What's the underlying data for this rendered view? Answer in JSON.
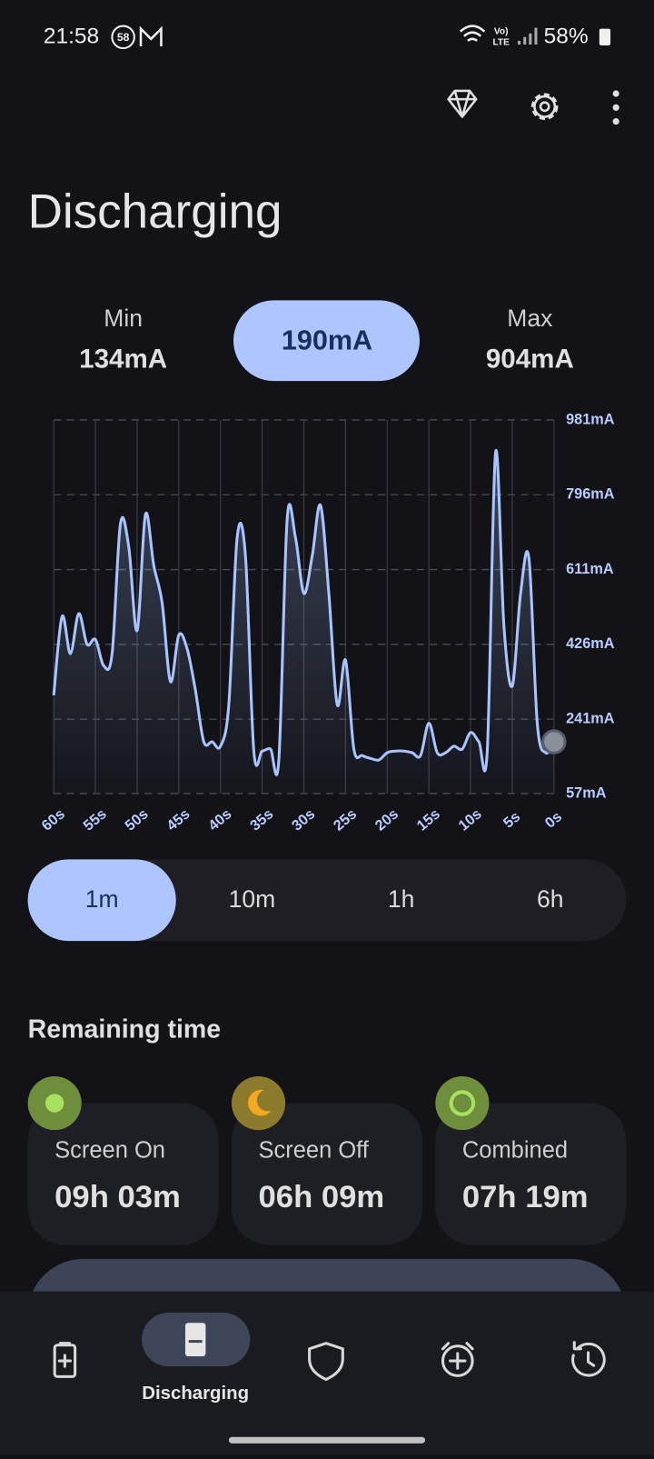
{
  "status_bar": {
    "time": "21:58",
    "notification_badge": "58",
    "volte": "Vo)",
    "lte": "LTE",
    "battery": "58%"
  },
  "header": {
    "title": "Discharging"
  },
  "stats": {
    "min_label": "Min",
    "min_value": "134mA",
    "current": "190mA",
    "max_label": "Max",
    "max_value": "904mA"
  },
  "chart_data": {
    "type": "line",
    "x": [
      60,
      59,
      58,
      57,
      56,
      55,
      54,
      53,
      52,
      51,
      50,
      49,
      48,
      47,
      46,
      45,
      44,
      43,
      42,
      41,
      40,
      39,
      38,
      37,
      36,
      35,
      34,
      33,
      32,
      31,
      30,
      29,
      28,
      27,
      26,
      25,
      24,
      23,
      22,
      21,
      20,
      19,
      18,
      17,
      16,
      15,
      14,
      13,
      12,
      11,
      10,
      9,
      8,
      7,
      6,
      5,
      4,
      3,
      2,
      1,
      0
    ],
    "values": [
      300,
      495,
      403,
      502,
      426,
      438,
      373,
      403,
      724,
      667,
      460,
      747,
      621,
      529,
      334,
      449,
      415,
      312,
      185,
      185,
      174,
      277,
      690,
      644,
      162,
      162,
      167,
      140,
      736,
      690,
      552,
      644,
      770,
      552,
      277,
      387,
      167,
      151,
      144,
      140,
      158,
      162,
      162,
      158,
      151,
      231,
      158,
      158,
      174,
      167,
      208,
      185,
      162,
      901,
      472,
      323,
      552,
      639,
      231,
      158,
      185
    ],
    "color": "#a8c4ff",
    "xlim": [
      60,
      0
    ],
    "xticks": [
      {
        "value": 60,
        "label": "60s"
      },
      {
        "value": 55,
        "label": "55s"
      },
      {
        "value": 50,
        "label": "50s"
      },
      {
        "value": 45,
        "label": "45s"
      },
      {
        "value": 40,
        "label": "40s"
      },
      {
        "value": 35,
        "label": "35s"
      },
      {
        "value": 30,
        "label": "30s"
      },
      {
        "value": 25,
        "label": "25s"
      },
      {
        "value": 20,
        "label": "20s"
      },
      {
        "value": 15,
        "label": "15s"
      },
      {
        "value": 10,
        "label": "10s"
      },
      {
        "value": 5,
        "label": "5s"
      },
      {
        "value": 0,
        "label": "0s"
      }
    ],
    "ylim": [
      57,
      981
    ],
    "yticks": [
      {
        "value": 57,
        "label": "57mA"
      },
      {
        "value": 241,
        "label": "241mA"
      },
      {
        "value": 426,
        "label": "426mA"
      },
      {
        "value": 611,
        "label": "611mA"
      },
      {
        "value": 796,
        "label": "796mA"
      },
      {
        "value": 981,
        "label": "981mA"
      }
    ],
    "grid": true
  },
  "range_selector": {
    "options": [
      "1m",
      "10m",
      "1h",
      "6h"
    ],
    "selected": 0
  },
  "remaining_time": {
    "title": "Remaining time",
    "cards": [
      {
        "label": "Screen On",
        "value": "09h 03m"
      },
      {
        "label": "Screen Off",
        "value": "06h 09m"
      },
      {
        "label": "Combined",
        "value": "07h 19m"
      }
    ]
  },
  "bottom_nav": {
    "active_label": "Discharging"
  }
}
